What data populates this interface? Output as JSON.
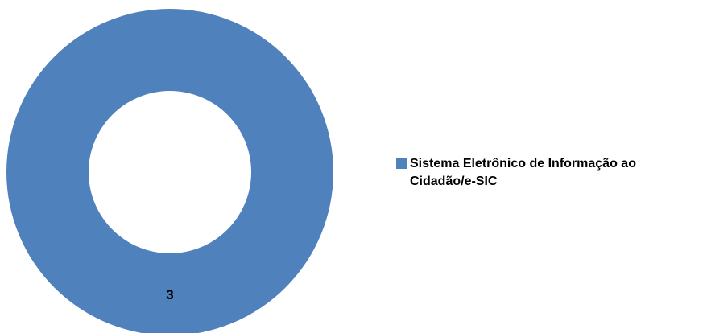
{
  "chart_data": {
    "type": "pie",
    "donut": true,
    "title": "",
    "categories": [
      "Sistema Eletrônico de Informação ao Cidadão/e-SIC"
    ],
    "values": [
      3
    ],
    "data_labels": [
      "3"
    ],
    "colors": [
      "#4F81BD"
    ],
    "legend": {
      "position": "right",
      "entries": [
        "Sistema Eletrônico de Informação ao Cidadão/e-SIC"
      ]
    }
  }
}
